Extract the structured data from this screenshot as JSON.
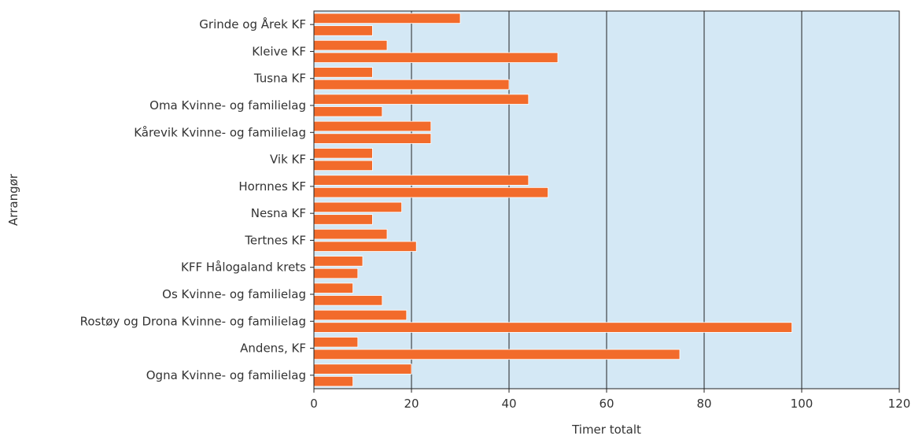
{
  "chart_data": {
    "type": "bar",
    "orientation": "horizontal",
    "xlabel": "Timer totalt",
    "ylabel": "Arrangør",
    "xlim": [
      0,
      120
    ],
    "xticks": [
      0,
      20,
      40,
      60,
      80,
      100,
      120
    ],
    "grid": true,
    "legend": "none",
    "categories": [
      "Grinde og Årek KF",
      "Kleive KF",
      "Tusna KF",
      "Oma Kvinne- og familielag",
      "Kårevik Kvinne- og familielag",
      "Vik KF",
      "Hornnes KF",
      "Nesna KF",
      "Tertnes KF",
      "KFF Hålogaland krets",
      "Os Kvinne- og familielag",
      "Rostøy og Drona Kvinne- og familielag",
      "Andens, KF",
      "Ogna Kvinne- og familielag"
    ],
    "series": [
      {
        "values": [
          30,
          15,
          12,
          44,
          24,
          12,
          44,
          18,
          15,
          10,
          8,
          19,
          9,
          20
        ]
      },
      {
        "values": [
          12,
          50,
          40,
          14,
          24,
          12,
          48,
          12,
          21,
          9,
          14,
          98,
          75,
          8
        ]
      }
    ],
    "colors": {
      "bar": "#f26b2b",
      "bar_edge": "#ffffff",
      "plot_background": "#d4e8f5",
      "gridline": "#222222",
      "axis": "#222222"
    }
  }
}
